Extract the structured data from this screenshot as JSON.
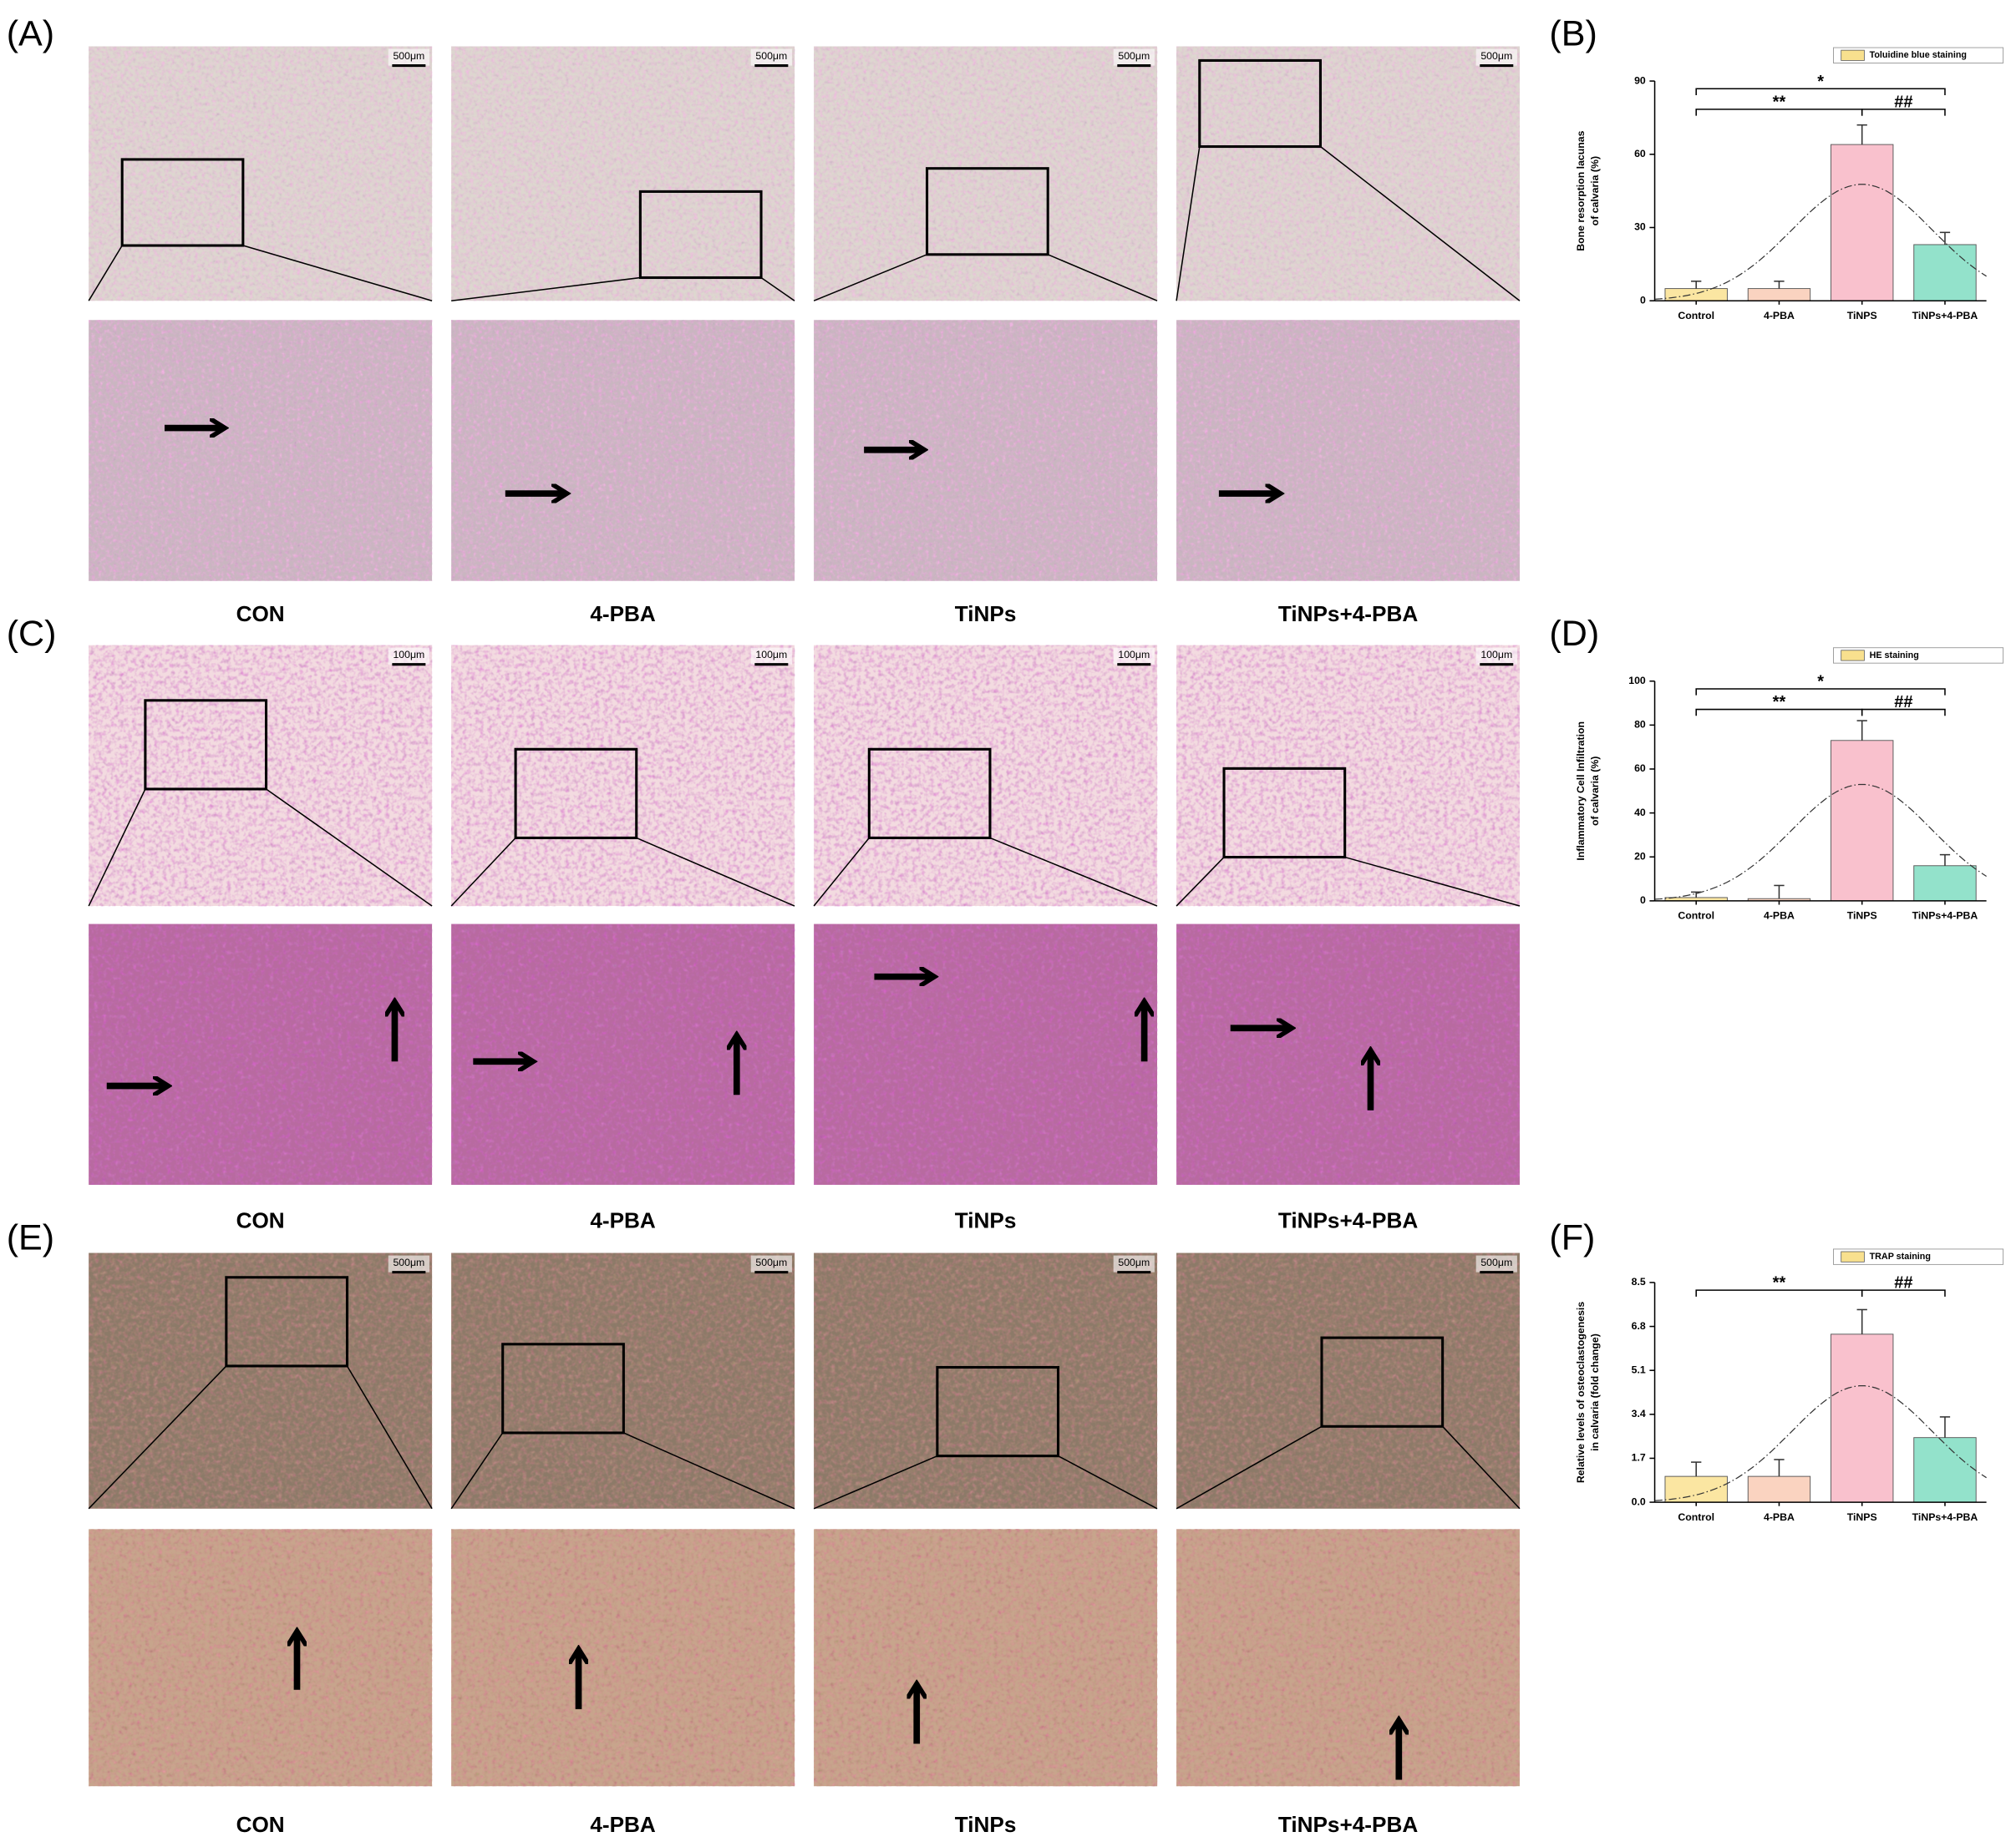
{
  "figure": {
    "panel_labels": [
      "(A)",
      "(B)",
      "(C)",
      "(D)",
      "(E)",
      "(F)"
    ],
    "captions": [
      [
        "CON",
        "4-PBA",
        "TiNPs",
        "TiNPs+4-PBA"
      ],
      [
        "CON",
        "4-PBA",
        "TiNPs",
        "TiNPs+4-PBA"
      ],
      [
        "CON",
        "4-PBA",
        "TiNPs",
        "TiNPs+4-PBA"
      ]
    ],
    "scale_bars": [
      "500μm",
      "100μm",
      "500μm"
    ]
  },
  "chart_data": [
    {
      "type": "bar",
      "legend_label": "Toluidine blue staining",
      "legend_color": "#f8e08e",
      "y_label": [
        "Bone resorption lacunas",
        "of calvaria (%)"
      ],
      "categories": [
        "Control",
        "4-PBA",
        "TiNPS",
        "TiNPs+4-PBA"
      ],
      "values": [
        5,
        5,
        64,
        23
      ],
      "errors": [
        3,
        3,
        8,
        5
      ],
      "colors": [
        "#fbe6a2",
        "#fad3c0",
        "#f9c1cd",
        "#93e2cb"
      ],
      "ylim": [
        0,
        90
      ],
      "yticks": [
        0,
        30,
        60,
        90
      ],
      "annotations": [
        "*",
        "**",
        "##"
      ]
    },
    {
      "type": "bar",
      "legend_label": "HE staining",
      "legend_color": "#f8e08e",
      "y_label": [
        "Inflammatory Cell Infiltration",
        "of calvaria (%)"
      ],
      "categories": [
        "Control",
        "4-PBA",
        "TiNPS",
        "TiNPs+4-PBA"
      ],
      "values": [
        1.5,
        1,
        73,
        16
      ],
      "errors": [
        2.5,
        6,
        9,
        5
      ],
      "colors": [
        "#fbe6a2",
        "#fad3c0",
        "#f9c1cd",
        "#93e2cb"
      ],
      "ylim": [
        0,
        100
      ],
      "yticks": [
        0,
        20,
        40,
        60,
        80,
        100
      ],
      "annotations": [
        "*",
        "**",
        "##"
      ]
    },
    {
      "type": "bar",
      "legend_label": "TRAP staining",
      "legend_color": "#f8e08e",
      "y_label": [
        "Relative levels of osteoclastogenesis",
        "in calvaria (fold change)"
      ],
      "categories": [
        "Control",
        "4-PBA",
        "TiNPS",
        "TiNPs+4-PBA"
      ],
      "values": [
        1.0,
        1.0,
        6.5,
        2.5
      ],
      "errors": [
        0.55,
        0.65,
        0.95,
        0.8
      ],
      "colors": [
        "#fbe6a2",
        "#fad3c0",
        "#f9c1cd",
        "#93e2cb"
      ],
      "ylim": [
        0,
        8.5
      ],
      "yticks": [
        {
          "value": 0,
          "label": "0.0"
        },
        1.7,
        3.4,
        5.1,
        6.8,
        8.5
      ],
      "annotations": [
        "**",
        "##"
      ]
    }
  ]
}
